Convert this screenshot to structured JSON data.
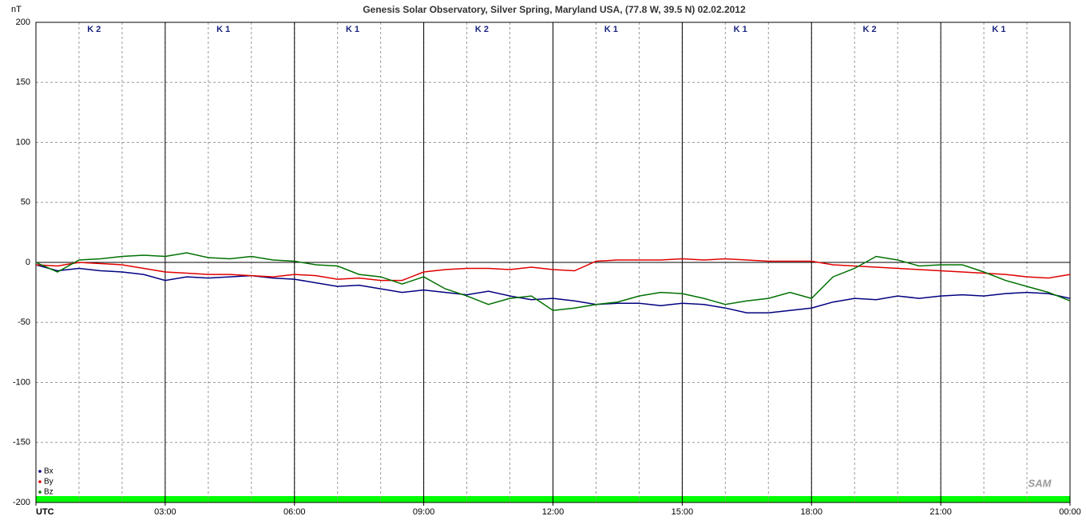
{
  "chart_data": {
    "type": "line",
    "title": "Genesis Solar Observatory, Silver Spring, Maryland USA, (77.8 W, 39.5 N)  02.02.2012",
    "y_label": "nT",
    "logo": "SAM",
    "k_labels": [
      "K 2",
      "K 1",
      "K 1",
      "K 2",
      "K 1",
      "K 1",
      "K 2",
      "K 1"
    ],
    "xlim": [
      0,
      24
    ],
    "xticks": [
      {
        "value": 0,
        "label": "UTC"
      },
      {
        "value": 3,
        "label": "03:00"
      },
      {
        "value": 6,
        "label": "06:00"
      },
      {
        "value": 9,
        "label": "09:00"
      },
      {
        "value": 12,
        "label": "12:00"
      },
      {
        "value": 15,
        "label": "15:00"
      },
      {
        "value": 18,
        "label": "18:00"
      },
      {
        "value": 21,
        "label": "21:00"
      },
      {
        "value": 24,
        "label": "00:00"
      }
    ],
    "ylim": [
      -200,
      200
    ],
    "yticks": [
      -200,
      -150,
      -100,
      -50,
      0,
      50,
      100,
      150,
      200
    ],
    "grid": true,
    "legend": "bottom-left",
    "x": [
      0,
      0.5,
      1,
      1.5,
      2,
      2.5,
      3,
      3.5,
      4,
      4.5,
      5,
      5.5,
      6,
      6.5,
      7,
      7.5,
      8,
      8.5,
      9,
      9.5,
      10,
      10.5,
      11,
      11.5,
      12,
      12.5,
      13,
      13.5,
      14,
      14.5,
      15,
      15.5,
      16,
      16.5,
      17,
      17.5,
      18,
      18.5,
      19,
      19.5,
      20,
      20.5,
      21,
      21.5,
      22,
      22.5,
      23,
      23.5,
      24
    ],
    "series": [
      {
        "name": "Bx",
        "color": "#000080",
        "values": [
          -2,
          -7,
          -5,
          -7,
          -8,
          -10,
          -15,
          -12,
          -13,
          -12,
          -11,
          -13,
          -14,
          -17,
          -20,
          -19,
          -22,
          -25,
          -23,
          -25,
          -27,
          -24,
          -28,
          -31,
          -30,
          -32,
          -35,
          -34,
          -34,
          -36,
          -34,
          -35,
          -38,
          -42,
          -42,
          -40,
          -38,
          -33,
          -30,
          -31,
          -28,
          -30,
          -28,
          -27,
          -28,
          -26,
          -25,
          -26,
          -30
        ]
      },
      {
        "name": "By",
        "color": "#e00000",
        "values": [
          -2,
          -3,
          0,
          -1,
          -2,
          -5,
          -8,
          -9,
          -10,
          -10,
          -11,
          -12,
          -10,
          -11,
          -14,
          -13,
          -15,
          -15,
          -8,
          -6,
          -5,
          -5,
          -6,
          -4,
          -6,
          -7,
          1,
          2,
          2,
          2,
          3,
          2,
          3,
          2,
          1,
          1,
          1,
          -2,
          -3,
          -4,
          -5,
          -6,
          -7,
          -8,
          -9,
          -10,
          -12,
          -13,
          -10
        ]
      },
      {
        "name": "Bz",
        "color": "#007000",
        "values": [
          0,
          -8,
          2,
          3,
          5,
          6,
          5,
          8,
          4,
          3,
          5,
          2,
          1,
          -2,
          -3,
          -10,
          -12,
          -18,
          -12,
          -22,
          -28,
          -35,
          -30,
          -28,
          -40,
          -38,
          -35,
          -33,
          -28,
          -25,
          -26,
          -30,
          -35,
          -32,
          -30,
          -25,
          -30,
          -12,
          -5,
          5,
          2,
          -3,
          -2,
          -2,
          -8,
          -15,
          -20,
          -25,
          -32
        ]
      }
    ]
  }
}
